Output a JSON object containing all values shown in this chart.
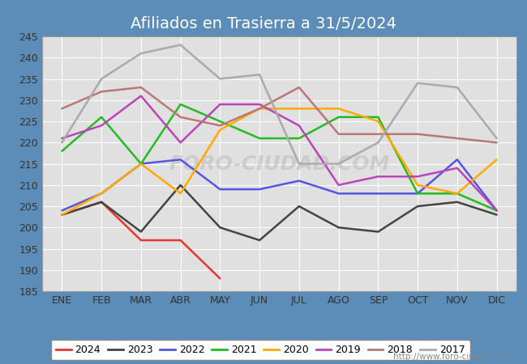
{
  "title": "Afiliados en Trasierra a 31/5/2024",
  "ylim": [
    185,
    245
  ],
  "yticks": [
    185,
    190,
    195,
    200,
    205,
    210,
    215,
    220,
    225,
    230,
    235,
    240,
    245
  ],
  "months": [
    "ENE",
    "FEB",
    "MAR",
    "ABR",
    "MAY",
    "JUN",
    "JUL",
    "AGO",
    "SEP",
    "OCT",
    "NOV",
    "DIC"
  ],
  "watermark": "FORO-CIUDAD.COM",
  "url": "http://www.foro-ciudad.com",
  "series": {
    "2024": {
      "color": "#e8362a",
      "data": [
        203,
        206,
        197,
        197,
        188,
        null,
        null,
        null,
        null,
        null,
        null,
        null
      ]
    },
    "2023": {
      "color": "#444444",
      "data": [
        203,
        206,
        199,
        210,
        200,
        197,
        205,
        200,
        199,
        205,
        206,
        203
      ]
    },
    "2022": {
      "color": "#5555dd",
      "data": [
        204,
        208,
        215,
        216,
        209,
        209,
        211,
        208,
        208,
        208,
        216,
        204
      ]
    },
    "2021": {
      "color": "#22bb22",
      "data": [
        218,
        226,
        215,
        229,
        225,
        221,
        221,
        226,
        226,
        208,
        208,
        204
      ]
    },
    "2020": {
      "color": "#ffaa00",
      "data": [
        203,
        208,
        215,
        208,
        223,
        228,
        228,
        228,
        225,
        210,
        208,
        216
      ]
    },
    "2019": {
      "color": "#bb44bb",
      "data": [
        221,
        224,
        231,
        220,
        229,
        229,
        224,
        210,
        212,
        212,
        214,
        204
      ]
    },
    "2018": {
      "color": "#bb7777",
      "data": [
        228,
        232,
        233,
        226,
        224,
        228,
        233,
        222,
        222,
        222,
        221,
        220
      ]
    },
    "2017": {
      "color": "#aaaaaa",
      "data": [
        220,
        235,
        241,
        243,
        235,
        236,
        215,
        215,
        220,
        234,
        233,
        221
      ]
    }
  },
  "fig_bg": "#5b8db8",
  "plot_bg": "#e0e0e0",
  "grid_color": "#ffffff",
  "title_color": "#ffffff",
  "title_fontsize": 14,
  "tick_fontsize": 9,
  "legend_order": [
    "2024",
    "2023",
    "2022",
    "2021",
    "2020",
    "2019",
    "2018",
    "2017"
  ]
}
